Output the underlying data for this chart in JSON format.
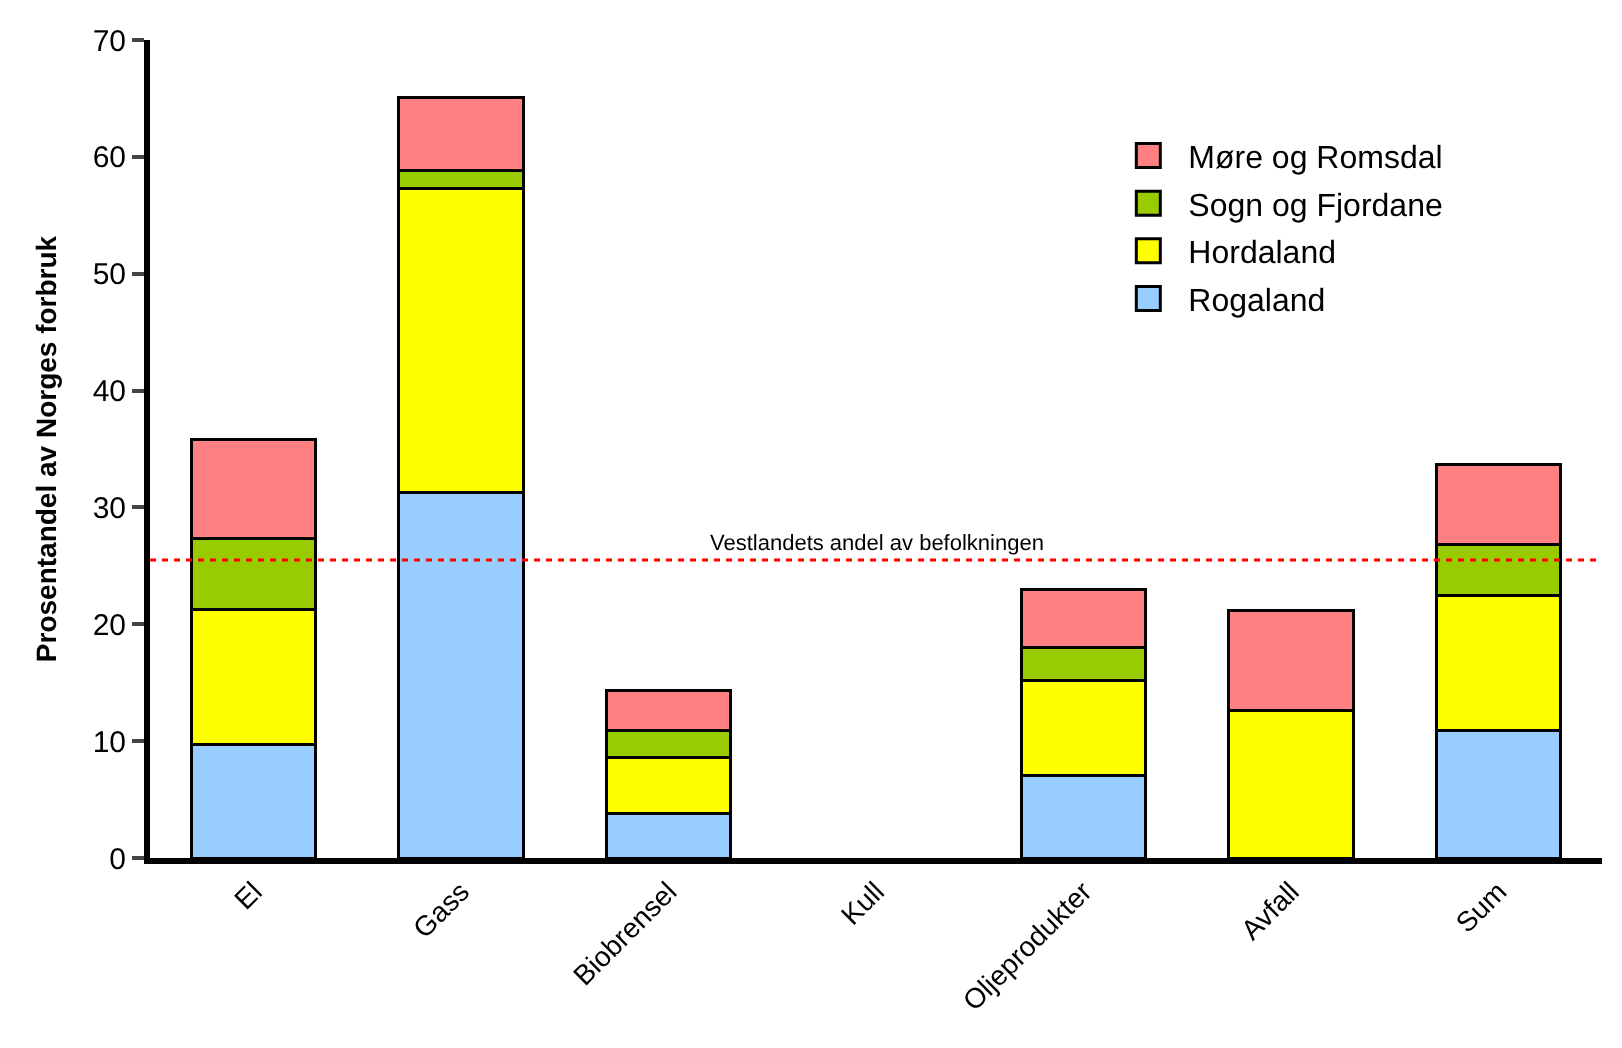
{
  "chart_data": {
    "type": "bar",
    "stacked": true,
    "ylabel": "Prosentandel av Norges forbruk",
    "categories": [
      "El",
      "Gass",
      "Biobrensel",
      "Kull",
      "Oljeprodukter",
      "Avfall",
      "Sum"
    ],
    "series": [
      {
        "name": "Rogaland",
        "color": "#99ccff",
        "values": [
          9.7,
          31.3,
          3.8,
          null,
          7.1,
          0,
          10.9
        ]
      },
      {
        "name": "Hordaland",
        "color": "#ffff00",
        "values": [
          11.6,
          26.0,
          4.8,
          null,
          8.1,
          12.6,
          11.6
        ]
      },
      {
        "name": "Sogn og Fjordane",
        "color": "#99cc00",
        "values": [
          6.0,
          1.5,
          2.3,
          null,
          2.8,
          0,
          4.3
        ]
      },
      {
        "name": "Møre og Romsdal",
        "color": "#ff8080",
        "values": [
          8.5,
          6.3,
          3.4,
          null,
          5.0,
          8.6,
          6.9
        ]
      }
    ],
    "ylim": [
      0,
      70
    ],
    "yticks": [
      0,
      10,
      20,
      30,
      40,
      50,
      60,
      70
    ],
    "ref_lines": [
      {
        "axis": "y",
        "value": 25.5,
        "label": "Vestlandets andel av befolkningen",
        "color": "#ff0000",
        "line_style": "dotted"
      }
    ],
    "grid": false,
    "legend": "top right"
  }
}
